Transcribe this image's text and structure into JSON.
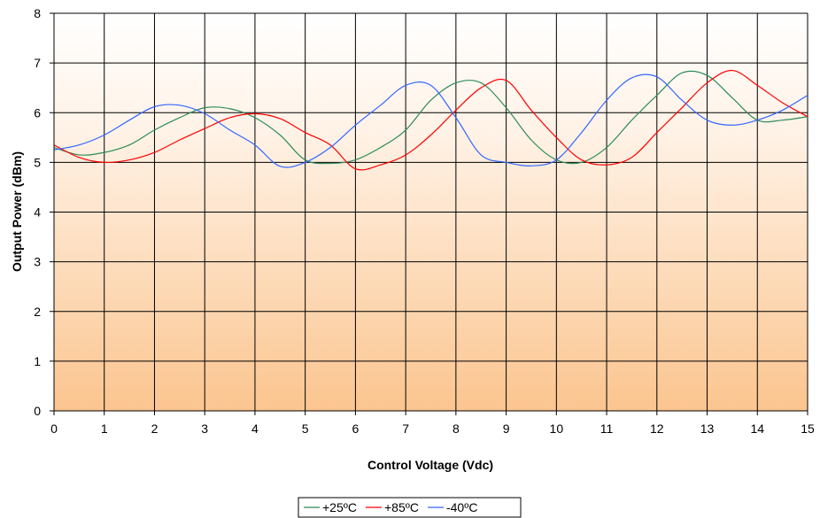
{
  "chart_data": {
    "type": "line",
    "title": "",
    "xlabel": "Control Voltage (Vdc)",
    "ylabel": "Output Power (dBm)",
    "xlim": [
      0,
      15
    ],
    "ylim": [
      0,
      8
    ],
    "xticks": [
      0,
      1,
      2,
      3,
      4,
      5,
      6,
      7,
      8,
      9,
      10,
      11,
      12,
      13,
      14,
      15
    ],
    "yticks": [
      0,
      1,
      2,
      3,
      4,
      5,
      6,
      7,
      8
    ],
    "grid": true,
    "legend_position": "bottom",
    "series": [
      {
        "name": "+25ºC",
        "color": "#2e8b57",
        "points": [
          [
            0,
            5.3
          ],
          [
            0.5,
            5.15
          ],
          [
            1,
            5.2
          ],
          [
            1.5,
            5.35
          ],
          [
            2,
            5.65
          ],
          [
            2.5,
            5.9
          ],
          [
            3,
            6.1
          ],
          [
            3.5,
            6.08
          ],
          [
            4,
            5.9
          ],
          [
            4.5,
            5.55
          ],
          [
            5,
            5.05
          ],
          [
            5.5,
            4.98
          ],
          [
            6,
            5.05
          ],
          [
            6.5,
            5.3
          ],
          [
            7,
            5.65
          ],
          [
            7.5,
            6.25
          ],
          [
            8,
            6.6
          ],
          [
            8.5,
            6.6
          ],
          [
            9,
            6.1
          ],
          [
            9.5,
            5.45
          ],
          [
            10,
            5.05
          ],
          [
            10.5,
            5.0
          ],
          [
            11,
            5.3
          ],
          [
            11.5,
            5.85
          ],
          [
            12,
            6.35
          ],
          [
            12.5,
            6.8
          ],
          [
            13,
            6.75
          ],
          [
            13.5,
            6.3
          ],
          [
            14,
            5.85
          ],
          [
            14.5,
            5.85
          ],
          [
            15,
            5.92
          ]
        ]
      },
      {
        "name": "+85ºC",
        "color": "#ff0000",
        "points": [
          [
            0,
            5.35
          ],
          [
            0.5,
            5.1
          ],
          [
            1,
            5.0
          ],
          [
            1.5,
            5.05
          ],
          [
            2,
            5.2
          ],
          [
            2.5,
            5.45
          ],
          [
            3,
            5.68
          ],
          [
            3.5,
            5.9
          ],
          [
            4,
            5.98
          ],
          [
            4.5,
            5.88
          ],
          [
            5,
            5.6
          ],
          [
            5.5,
            5.35
          ],
          [
            6,
            4.87
          ],
          [
            6.5,
            4.95
          ],
          [
            7,
            5.15
          ],
          [
            7.5,
            5.55
          ],
          [
            8,
            6.05
          ],
          [
            8.5,
            6.5
          ],
          [
            9,
            6.65
          ],
          [
            9.5,
            6.05
          ],
          [
            10,
            5.5
          ],
          [
            10.5,
            5.05
          ],
          [
            11,
            4.95
          ],
          [
            11.5,
            5.1
          ],
          [
            12,
            5.6
          ],
          [
            12.5,
            6.1
          ],
          [
            13,
            6.6
          ],
          [
            13.5,
            6.85
          ],
          [
            14,
            6.55
          ],
          [
            14.5,
            6.2
          ],
          [
            15,
            5.92
          ]
        ]
      },
      {
        "name": "-40ºC",
        "color": "#3366ff",
        "points": [
          [
            0,
            5.25
          ],
          [
            0.5,
            5.35
          ],
          [
            1,
            5.55
          ],
          [
            1.5,
            5.85
          ],
          [
            2,
            6.12
          ],
          [
            2.5,
            6.15
          ],
          [
            3,
            5.98
          ],
          [
            3.5,
            5.65
          ],
          [
            4,
            5.35
          ],
          [
            4.5,
            4.92
          ],
          [
            5,
            5.0
          ],
          [
            5.5,
            5.3
          ],
          [
            6,
            5.75
          ],
          [
            6.5,
            6.15
          ],
          [
            7,
            6.55
          ],
          [
            7.5,
            6.55
          ],
          [
            8,
            5.9
          ],
          [
            8.5,
            5.15
          ],
          [
            9,
            5.0
          ],
          [
            9.5,
            4.93
          ],
          [
            10,
            5.05
          ],
          [
            10.5,
            5.6
          ],
          [
            11,
            6.25
          ],
          [
            11.5,
            6.7
          ],
          [
            12,
            6.72
          ],
          [
            12.5,
            6.25
          ],
          [
            13,
            5.85
          ],
          [
            13.5,
            5.75
          ],
          [
            14,
            5.85
          ],
          [
            14.5,
            6.05
          ],
          [
            15,
            6.35
          ]
        ]
      }
    ]
  }
}
